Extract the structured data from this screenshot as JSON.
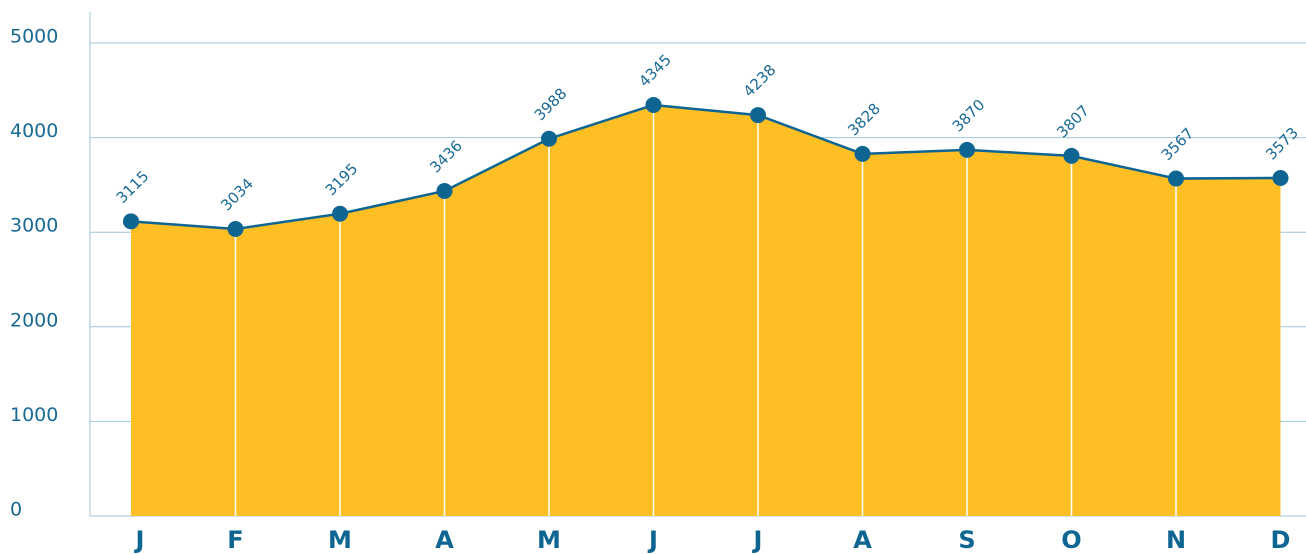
{
  "chart_data": {
    "type": "area",
    "categories": [
      "J",
      "F",
      "M",
      "A",
      "M",
      "J",
      "J",
      "A",
      "S",
      "O",
      "N",
      "D"
    ],
    "values": [
      3115,
      3034,
      3195,
      3436,
      3988,
      4345,
      4238,
      3828,
      3870,
      3807,
      3567,
      3573
    ],
    "color": "#0e6592",
    "fill_color": "#fdbf24",
    "ylim": [
      0,
      5000
    ],
    "yticks": [
      0,
      1000,
      2000,
      3000,
      4000,
      5000
    ],
    "grid": true
  }
}
